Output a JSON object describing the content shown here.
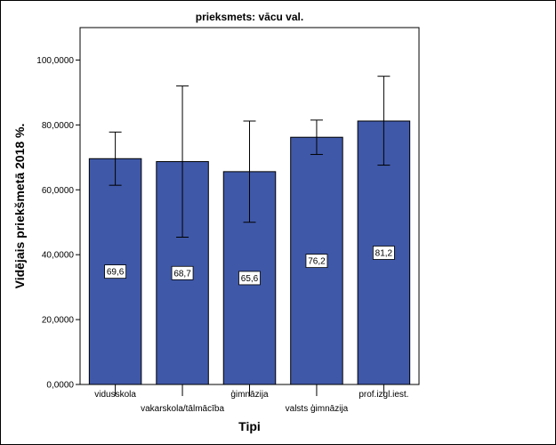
{
  "chart_data": {
    "type": "bar",
    "title": "prieksmets: vācu val.",
    "xlabel": "Tipi",
    "ylabel": "Vidējais priekšmetā 2018 %.",
    "ylim": [
      0,
      110
    ],
    "yticks": [
      0,
      20,
      40,
      60,
      80,
      100
    ],
    "ytick_labels": [
      "0,0000",
      "20,0000",
      "40,0000",
      "60,0000",
      "80,0000",
      "100,0000"
    ],
    "categories": [
      "vidusskola",
      "vakarskola/tālmācība",
      "ģimnāzija",
      "valsts ģimnāzija",
      "prof.izgl.iest."
    ],
    "values": [
      69.6,
      68.7,
      65.6,
      76.2,
      81.2
    ],
    "value_labels": [
      "69,6",
      "68,7",
      "65,6",
      "76,2",
      "81,2"
    ],
    "error_low": [
      61.4,
      45.4,
      50.0,
      70.9,
      67.6
    ],
    "error_high": [
      77.8,
      92.0,
      81.2,
      81.5,
      95.0
    ],
    "bar_color": "#3f58a8",
    "grid": false
  }
}
